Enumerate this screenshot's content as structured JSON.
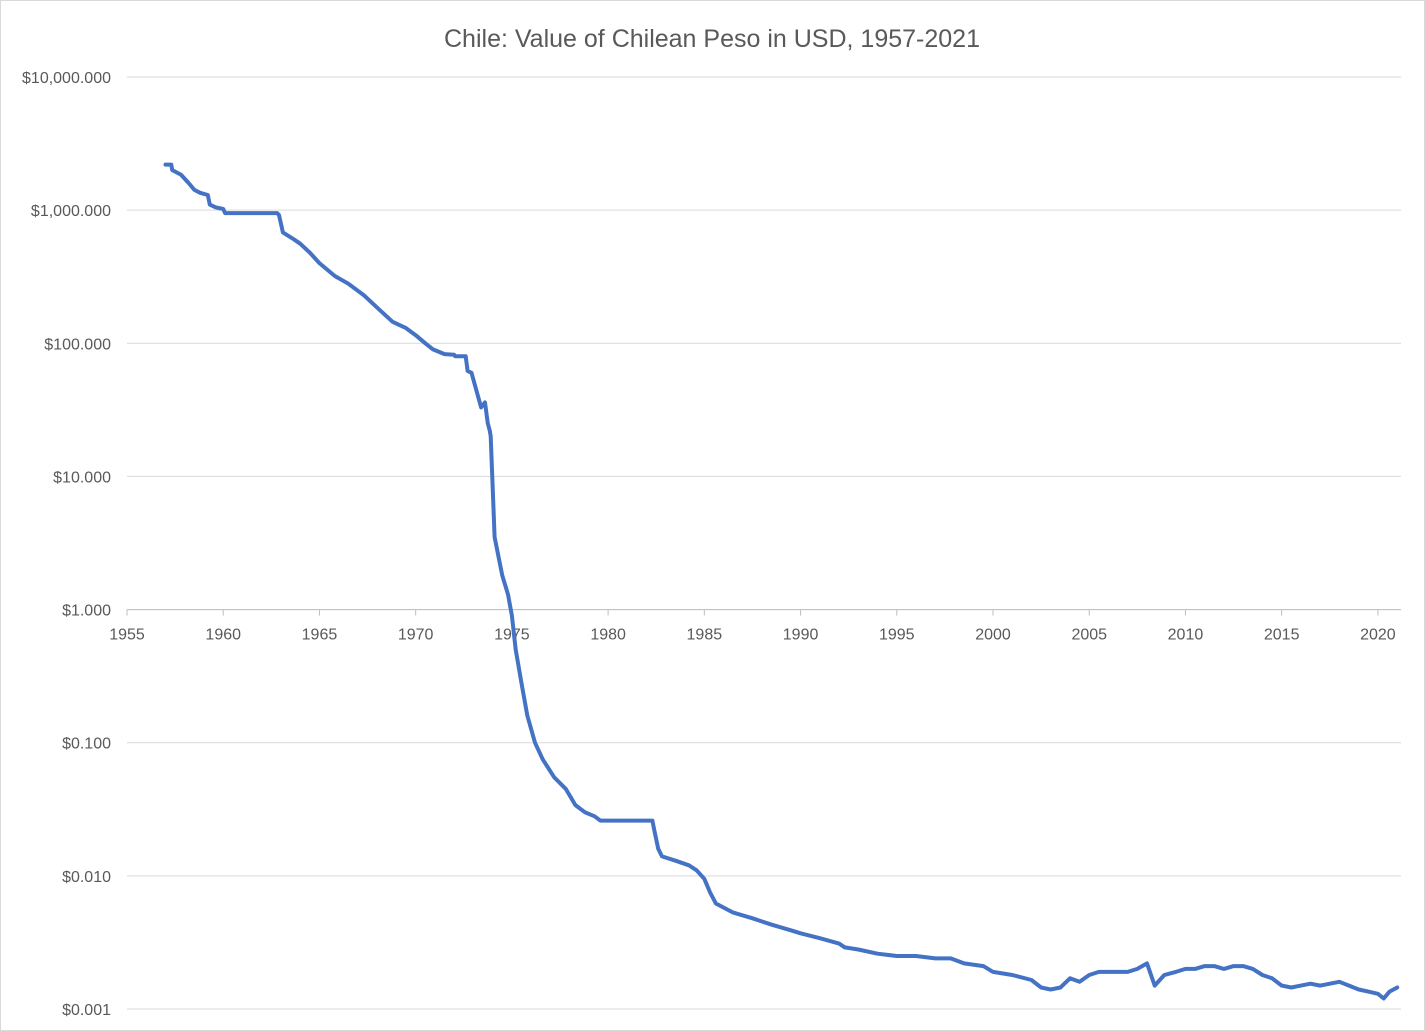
{
  "chart_data": {
    "type": "line",
    "title": "Chile: Value of Chilean Peso in USD, 1957-2021",
    "xlabel": "",
    "ylabel": "",
    "xlim": [
      1955,
      2021.2
    ],
    "ylim": [
      0.001,
      10000
    ],
    "yscale": "log",
    "x_ticks": [
      1955,
      1960,
      1965,
      1970,
      1975,
      1980,
      1985,
      1990,
      1995,
      2000,
      2005,
      2010,
      2015,
      2020
    ],
    "x_tick_labels": [
      "1955",
      "1960",
      "1965",
      "1970",
      "1975",
      "1980",
      "1985",
      "1990",
      "1995",
      "2000",
      "2005",
      "2010",
      "2015",
      "2020"
    ],
    "y_ticks": [
      0.001,
      0.01,
      0.1,
      1,
      10,
      100,
      1000,
      10000
    ],
    "y_tick_labels": [
      "$0.001",
      "$0.010",
      "$0.100",
      "$1.000",
      "$10.000",
      "$100.000",
      "$1,000.000",
      "$10,000.000"
    ],
    "grid": true,
    "legend": "none",
    "series_color": "#4472c4",
    "series": [
      {
        "x": [
          1957.0,
          1957.3,
          1957.35,
          1957.8,
          1958.2,
          1958.5,
          1958.8,
          1959.2,
          1959.3,
          1959.6,
          1960.0,
          1960.1,
          1961.0,
          1962.0,
          1962.8,
          1962.9,
          1963.1,
          1963.7,
          1964.0,
          1964.5,
          1965.0,
          1965.8,
          1966.5,
          1967.3,
          1968.0,
          1968.8,
          1969.5,
          1970.0,
          1970.5,
          1970.9,
          1971.5,
          1972.0,
          1972.05,
          1972.6,
          1972.7,
          1972.9,
          1973.4,
          1973.6,
          1973.7,
          1973.75,
          1973.85,
          1973.9,
          1974.1,
          1974.5,
          1974.8,
          1975.0,
          1975.2,
          1975.5,
          1975.8,
          1976.2,
          1976.6,
          1977.2,
          1977.8,
          1978.3,
          1978.8,
          1979.3,
          1979.6,
          1980.5,
          1981.5,
          1982.3,
          1982.4,
          1982.6,
          1982.8,
          1983.5,
          1984.2,
          1984.6,
          1985.0,
          1985.3,
          1985.6,
          1986.5,
          1987.5,
          1988.5,
          1989.5,
          1990.0,
          1991.0,
          1992.0,
          1992.3,
          1993.0,
          1994.0,
          1995.0,
          1995.4,
          1996.0,
          1997.0,
          1997.8,
          1998.5,
          1999.5,
          2000.0,
          2001.0,
          2002.0,
          2002.5,
          2003.0,
          2003.5,
          2004.0,
          2004.5,
          2005.0,
          2005.5,
          2006.0,
          2007.0,
          2007.5,
          2008.0,
          2008.4,
          2008.9,
          2009.5,
          2010.0,
          2010.5,
          2011.0,
          2011.5,
          2012.0,
          2012.5,
          2013.0,
          2013.5,
          2014.0,
          2014.5,
          2015.0,
          2015.5,
          2016.0,
          2016.5,
          2017.0,
          2017.5,
          2018.0,
          2018.5,
          2019.0,
          2019.5,
          2020.0,
          2020.3,
          2020.6,
          2021.0
        ],
        "values": [
          2200,
          2200,
          2000,
          1850,
          1600,
          1420,
          1350,
          1300,
          1100,
          1050,
          1020,
          950,
          950,
          950,
          950,
          920,
          680,
          600,
          560,
          480,
          400,
          320,
          280,
          230,
          185,
          145,
          130,
          115,
          100,
          90,
          83,
          82,
          80,
          80,
          62,
          60,
          33,
          36,
          28,
          25,
          22,
          20,
          3.5,
          1.8,
          1.3,
          0.9,
          0.5,
          0.28,
          0.16,
          0.1,
          0.075,
          0.055,
          0.045,
          0.034,
          0.03,
          0.028,
          0.026,
          0.026,
          0.026,
          0.026,
          0.022,
          0.016,
          0.014,
          0.013,
          0.012,
          0.011,
          0.0095,
          0.0075,
          0.0062,
          0.0053,
          0.0048,
          0.0043,
          0.0039,
          0.0037,
          0.0034,
          0.0031,
          0.0029,
          0.0028,
          0.0026,
          0.0025,
          0.0025,
          0.0025,
          0.0024,
          0.0024,
          0.0022,
          0.0021,
          0.0019,
          0.0018,
          0.00165,
          0.00145,
          0.0014,
          0.00145,
          0.0017,
          0.0016,
          0.0018,
          0.0019,
          0.0019,
          0.0019,
          0.002,
          0.0022,
          0.0015,
          0.0018,
          0.0019,
          0.002,
          0.002,
          0.0021,
          0.0021,
          0.002,
          0.0021,
          0.0021,
          0.002,
          0.0018,
          0.0017,
          0.0015,
          0.00145,
          0.0015,
          0.00155,
          0.0015,
          0.00155,
          0.0016,
          0.0015,
          0.0014,
          0.00135,
          0.0013,
          0.0012,
          0.00135,
          0.00145
        ]
      }
    ]
  }
}
